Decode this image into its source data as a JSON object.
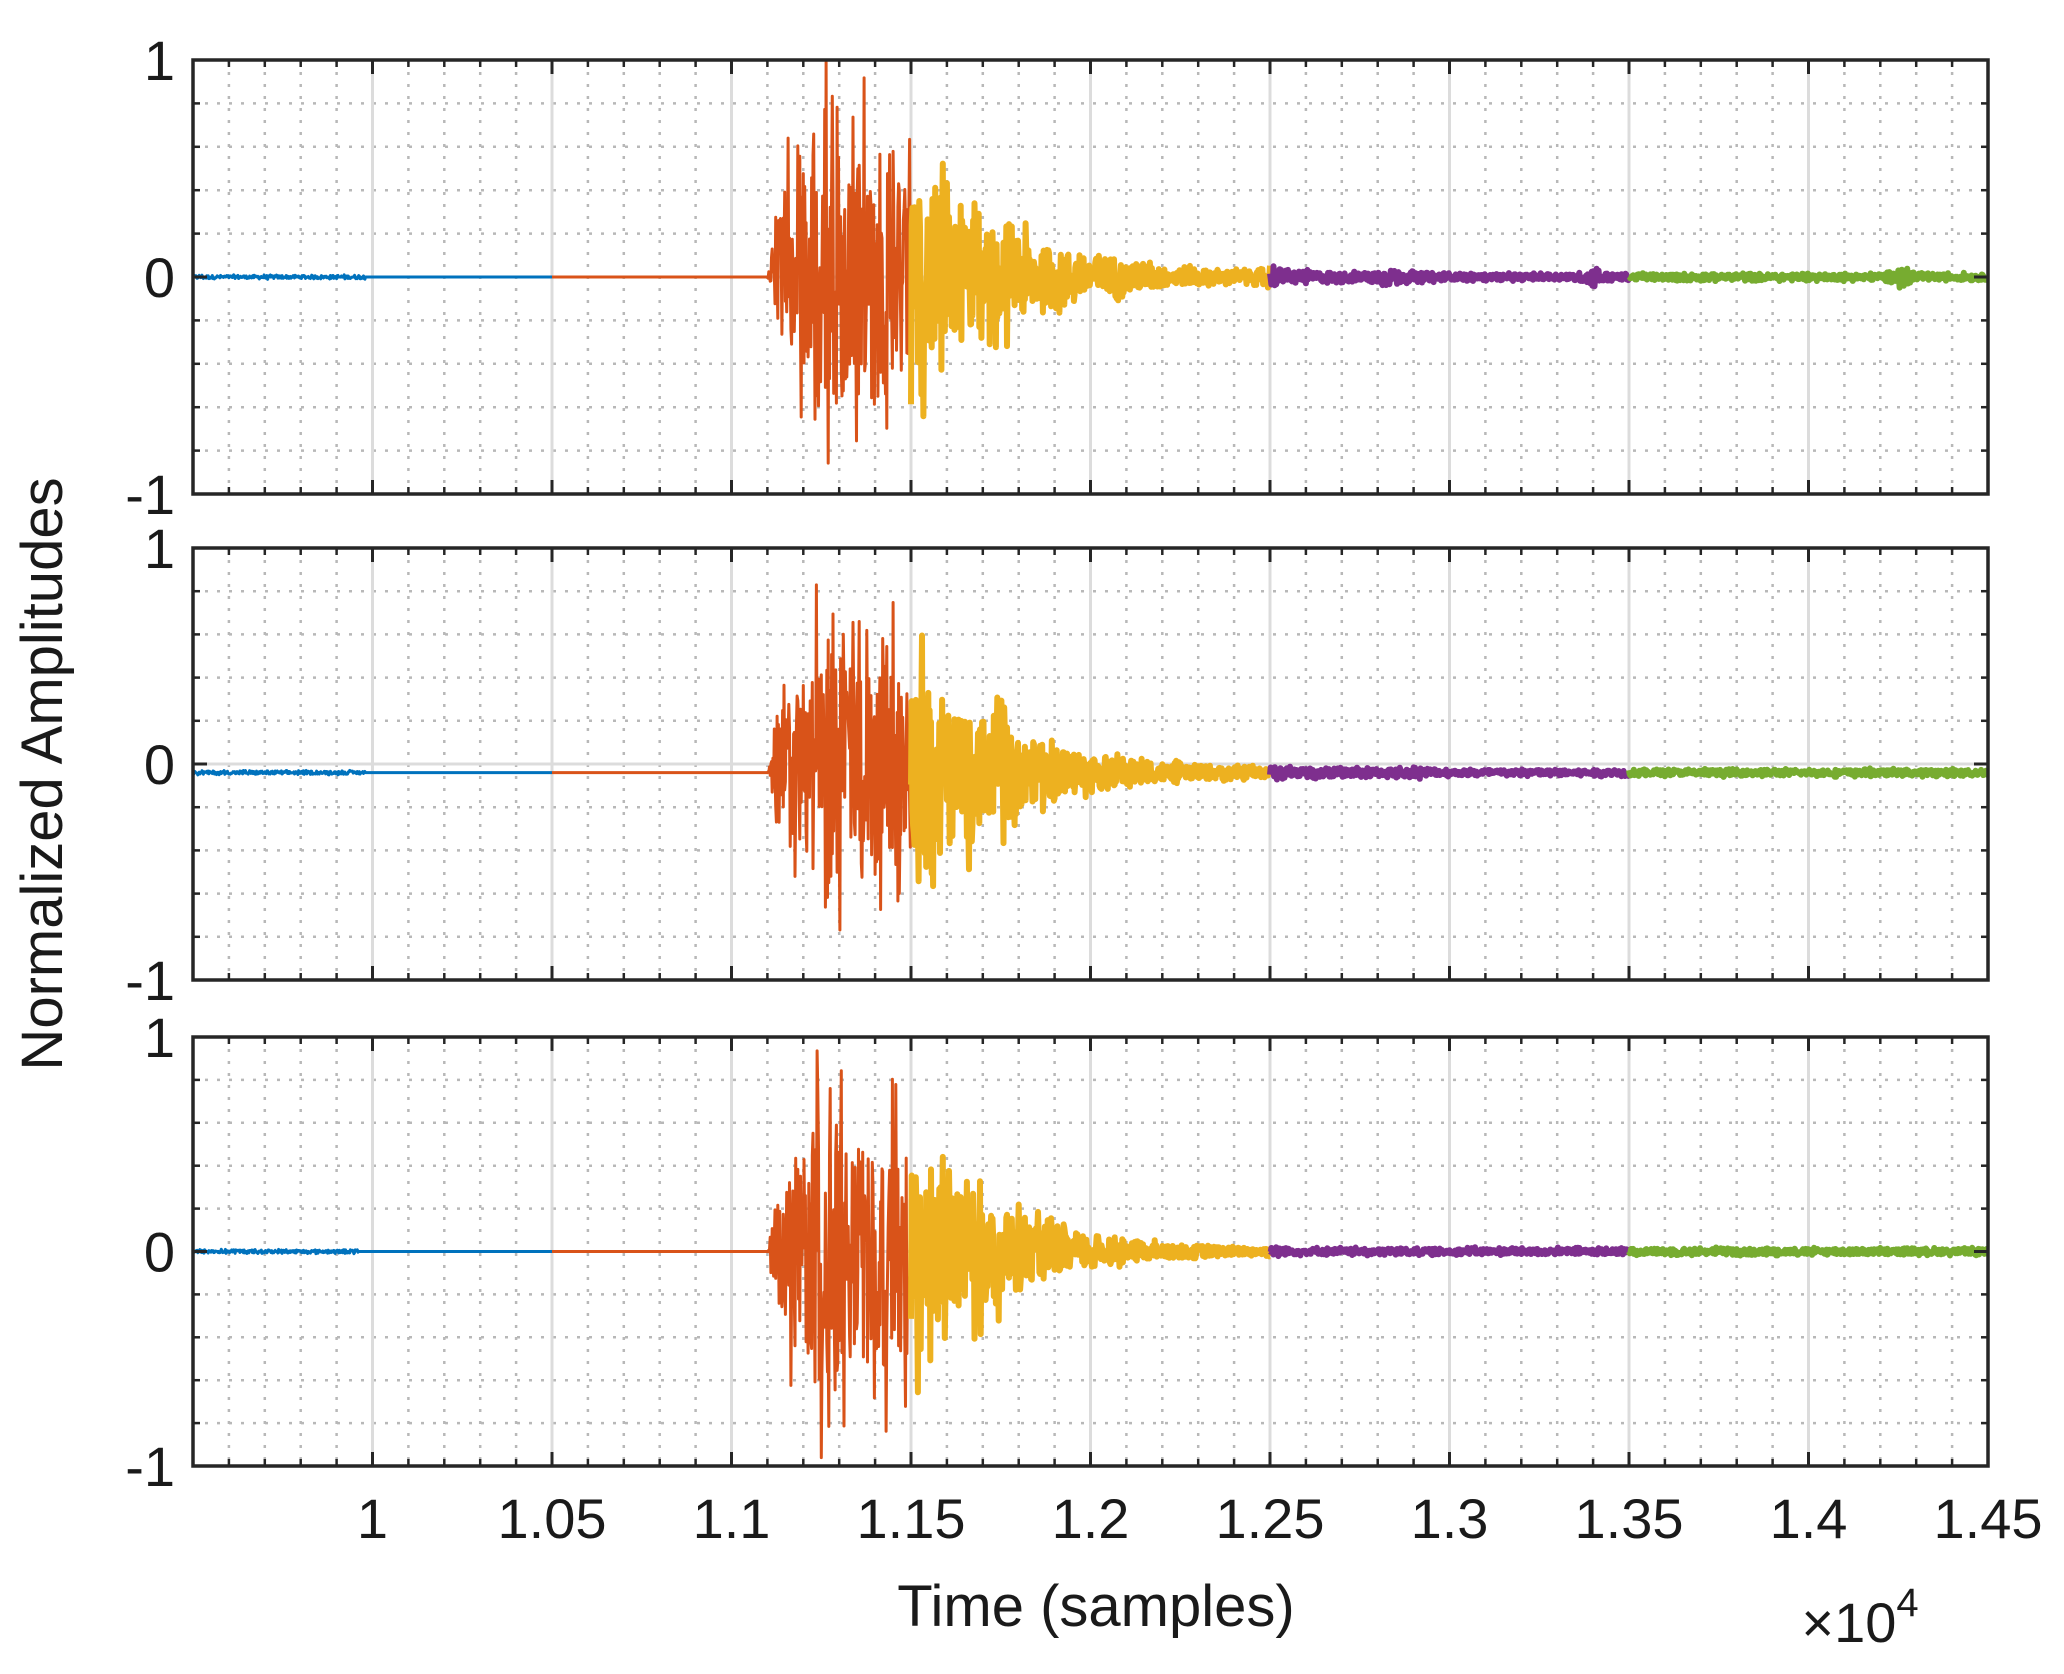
{
  "chart_data": {
    "type": "line",
    "xlabel": "Time (samples)",
    "ylabel": "Normalized Amplitudes",
    "x_multiplier": "×10",
    "x_multiplier_exponent": "4",
    "xlim": [
      0.95,
      1.45
    ],
    "xticks": [
      1.0,
      1.05,
      1.1,
      1.15,
      1.2,
      1.25,
      1.3,
      1.35,
      1.4,
      1.45
    ],
    "xtick_labels": [
      "1",
      "1.05",
      "1.1",
      "1.15",
      "1.2",
      "1.25",
      "1.3",
      "1.35",
      "1.4",
      "1.45"
    ],
    "ylim": [
      -1,
      1
    ],
    "yticks": [
      -1,
      0,
      1
    ],
    "ytick_labels": [
      "-1",
      "0",
      "1"
    ],
    "grid": true,
    "minor_grid": true,
    "segment_boundaries": [
      1.05,
      1.15,
      1.25,
      1.35
    ],
    "segment_colors": [
      "#0072BD",
      "#D95319",
      "#EDB120",
      "#7E2F8E",
      "#77AC30"
    ],
    "panels": [
      {
        "baseline": 0.0,
        "onset": 0.998,
        "envelope": [
          0.0,
          0.0,
          0.0,
          0.0,
          0.0,
          0.0,
          0.0,
          0.0,
          0.0,
          0.0,
          0.0,
          0.0,
          0.0,
          0.0,
          0.0,
          0.0,
          0.0,
          0.0,
          0.0,
          0.0,
          0.0,
          0.0,
          0.0,
          0.0,
          0.0,
          0.0,
          0.0,
          0.0,
          0.0,
          0.0,
          0.0,
          0.0,
          0.0,
          0.0,
          0.0,
          0.0,
          0.0,
          0.0,
          0.0,
          0.0,
          0.0,
          0.0,
          0.0,
          0.0,
          0.0,
          0.0,
          0.0,
          0.0,
          0.0,
          0.5,
          0.65,
          0.78,
          0.88,
          0.95,
          1.0,
          0.95,
          0.88,
          0.8,
          0.82,
          0.78,
          0.72,
          0.66,
          0.62,
          0.55,
          0.5,
          0.45,
          0.4,
          0.37,
          0.33,
          0.3,
          0.26,
          0.23,
          0.21,
          0.18,
          0.16,
          0.15,
          0.13,
          0.12,
          0.1,
          0.09,
          0.08,
          0.07,
          0.06,
          0.06,
          0.05,
          0.05,
          0.05,
          0.04,
          0.04,
          0.05,
          0.07,
          0.05,
          0.04,
          0.04,
          0.03,
          0.03,
          0.03,
          0.03,
          0.03,
          0.04,
          0.06,
          0.04,
          0.03,
          0.03,
          0.03,
          0.02,
          0.02,
          0.02,
          0.02,
          0.02,
          0.02,
          0.02,
          0.02,
          0.02,
          0.02,
          0.02,
          0.03,
          0.06,
          0.03,
          0.02,
          0.02,
          0.02,
          0.02,
          0.02,
          0.02,
          0.02,
          0.02,
          0.02,
          0.02,
          0.02,
          0.02,
          0.02,
          0.02,
          0.02,
          0.02,
          0.02,
          0.02,
          0.02,
          0.02,
          0.02,
          0.02,
          0.02,
          0.03,
          0.07,
          0.03,
          0.02,
          0.02,
          0.02,
          0.02,
          0.02
        ]
      },
      {
        "baseline": -0.04,
        "onset": 0.998,
        "envelope": [
          0.0,
          0.0,
          0.0,
          0.0,
          0.0,
          0.0,
          0.0,
          0.0,
          0.0,
          0.0,
          0.0,
          0.0,
          0.0,
          0.0,
          0.0,
          0.0,
          0.0,
          0.0,
          0.0,
          0.0,
          0.0,
          0.0,
          0.0,
          0.0,
          0.0,
          0.0,
          0.0,
          0.0,
          0.0,
          0.0,
          0.0,
          0.0,
          0.0,
          0.0,
          0.0,
          0.0,
          0.0,
          0.0,
          0.0,
          0.0,
          0.0,
          0.0,
          0.0,
          0.0,
          0.0,
          0.0,
          0.0,
          0.0,
          0.0,
          0.45,
          0.6,
          0.72,
          0.82,
          0.9,
          1.0,
          0.9,
          0.82,
          0.75,
          0.78,
          0.72,
          0.66,
          0.6,
          0.55,
          0.5,
          0.46,
          0.42,
          0.38,
          0.34,
          0.3,
          0.27,
          0.24,
          0.21,
          0.19,
          0.17,
          0.15,
          0.13,
          0.12,
          0.1,
          0.09,
          0.08,
          0.07,
          0.06,
          0.06,
          0.05,
          0.05,
          0.04,
          0.04,
          0.04,
          0.04,
          0.04,
          0.04,
          0.04,
          0.03,
          0.03,
          0.03,
          0.03,
          0.03,
          0.03,
          0.03,
          0.03,
          0.03,
          0.03,
          0.03,
          0.03,
          0.02,
          0.02,
          0.02,
          0.02,
          0.02,
          0.02,
          0.02,
          0.02,
          0.02,
          0.02,
          0.02,
          0.02,
          0.02,
          0.02,
          0.02,
          0.02,
          0.02,
          0.02,
          0.02,
          0.02,
          0.02,
          0.02,
          0.02,
          0.02,
          0.02,
          0.02,
          0.02,
          0.02,
          0.02,
          0.02,
          0.02,
          0.02,
          0.02,
          0.02,
          0.02,
          0.02,
          0.02,
          0.02,
          0.02,
          0.02,
          0.02,
          0.02,
          0.02,
          0.02,
          0.02,
          0.02,
          0.02
        ]
      },
      {
        "baseline": 0.0,
        "onset": 0.996,
        "envelope": [
          0.0,
          0.0,
          0.0,
          0.0,
          0.0,
          0.0,
          0.0,
          0.0,
          0.0,
          0.0,
          0.0,
          0.0,
          0.0,
          0.0,
          0.0,
          0.0,
          0.0,
          0.0,
          0.0,
          0.0,
          0.0,
          0.0,
          0.0,
          0.0,
          0.0,
          0.0,
          0.0,
          0.0,
          0.0,
          0.0,
          0.0,
          0.0,
          0.0,
          0.0,
          0.0,
          0.0,
          0.0,
          0.0,
          0.0,
          0.0,
          0.0,
          0.0,
          0.0,
          0.0,
          0.0,
          0.0,
          0.0,
          0.0,
          0.0,
          0.45,
          0.6,
          0.75,
          0.88,
          0.95,
          1.0,
          0.93,
          0.85,
          0.78,
          0.8,
          0.72,
          0.66,
          0.6,
          0.55,
          0.5,
          0.45,
          0.4,
          0.36,
          0.32,
          0.28,
          0.25,
          0.22,
          0.19,
          0.17,
          0.15,
          0.13,
          0.12,
          0.1,
          0.09,
          0.08,
          0.07,
          0.06,
          0.05,
          0.05,
          0.04,
          0.04,
          0.04,
          0.03,
          0.03,
          0.03,
          0.03,
          0.03,
          0.03,
          0.02,
          0.02,
          0.02,
          0.02,
          0.02,
          0.02,
          0.02,
          0.02,
          0.02,
          0.02,
          0.02,
          0.02,
          0.02,
          0.02,
          0.02,
          0.02,
          0.02,
          0.02,
          0.02,
          0.02,
          0.02,
          0.02,
          0.02,
          0.02,
          0.02,
          0.02,
          0.02,
          0.02,
          0.02,
          0.02,
          0.02,
          0.02,
          0.02,
          0.02,
          0.02,
          0.02,
          0.02,
          0.02,
          0.02,
          0.02,
          0.02,
          0.02,
          0.02,
          0.02,
          0.02,
          0.02,
          0.02,
          0.02,
          0.02,
          0.02,
          0.02,
          0.02,
          0.02,
          0.02,
          0.02,
          0.02,
          0.02,
          0.02,
          0.02
        ]
      }
    ]
  }
}
